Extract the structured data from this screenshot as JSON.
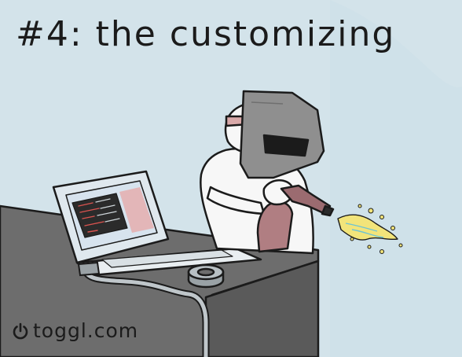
{
  "caption": {
    "title": "#4: the customizing"
  },
  "brand": {
    "logo_icon": "power-icon",
    "text": "toggl.com"
  },
  "colors": {
    "background": "#d3e3ea",
    "desk": "#6a6a6a",
    "character": "#f7f7f7",
    "helmet": "#8f8f8f",
    "extinguisher": "#b07e82",
    "sparks": "#f2e47a",
    "screen": "#d7e3ee",
    "terminal": "#2b2b2b"
  }
}
